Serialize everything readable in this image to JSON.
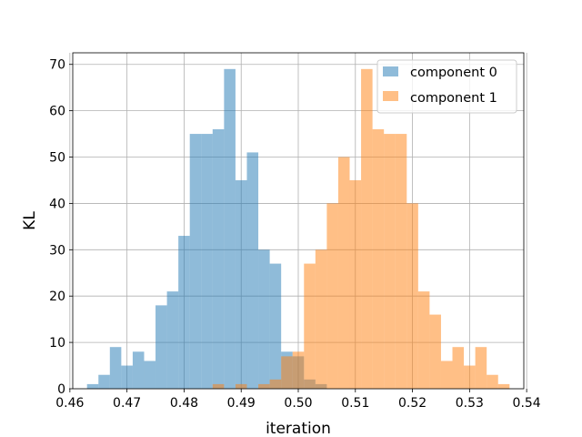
{
  "chart_data": {
    "type": "histogram",
    "xlabel": "iteration",
    "ylabel": "KL",
    "xlim": [
      0.4605,
      0.5395
    ],
    "ylim": [
      0,
      72.5
    ],
    "grid": true,
    "legend_position": "top-right",
    "x_ticks": [
      {
        "value": 0.46,
        "label": "0.46"
      },
      {
        "value": 0.47,
        "label": "0.47"
      },
      {
        "value": 0.48,
        "label": "0.48"
      },
      {
        "value": 0.49,
        "label": "0.49"
      },
      {
        "value": 0.5,
        "label": "0.50"
      },
      {
        "value": 0.51,
        "label": "0.51"
      },
      {
        "value": 0.52,
        "label": "0.52"
      },
      {
        "value": 0.53,
        "label": "0.53"
      },
      {
        "value": 0.54,
        "label": "0.54"
      }
    ],
    "y_ticks": [
      {
        "value": 0,
        "label": "0"
      },
      {
        "value": 10,
        "label": "10"
      },
      {
        "value": 20,
        "label": "20"
      },
      {
        "value": 30,
        "label": "30"
      },
      {
        "value": 40,
        "label": "40"
      },
      {
        "value": 50,
        "label": "50"
      },
      {
        "value": 60,
        "label": "60"
      },
      {
        "value": 70,
        "label": "70"
      }
    ],
    "series": [
      {
        "name": "component 0",
        "color": "#1f77b4",
        "opacity": 0.5,
        "bin_start": 0.463,
        "bin_width": 0.002,
        "counts": [
          1,
          3,
          9,
          5,
          8,
          6,
          18,
          21,
          33,
          55,
          55,
          56,
          69,
          45,
          51,
          30,
          27,
          8,
          7,
          2,
          1
        ]
      },
      {
        "name": "component 1",
        "color": "#ff7f0e",
        "opacity": 0.5,
        "bin_start": 0.463,
        "bin_width": 0.002,
        "counts": [
          0,
          0,
          0,
          0,
          0,
          0,
          0,
          0,
          0,
          0,
          0,
          1,
          0,
          1,
          0,
          1,
          2,
          7,
          8,
          27,
          30,
          40,
          50,
          45,
          69,
          56,
          55,
          55,
          40,
          21,
          16,
          6,
          9,
          5,
          9,
          3,
          1
        ]
      }
    ]
  }
}
